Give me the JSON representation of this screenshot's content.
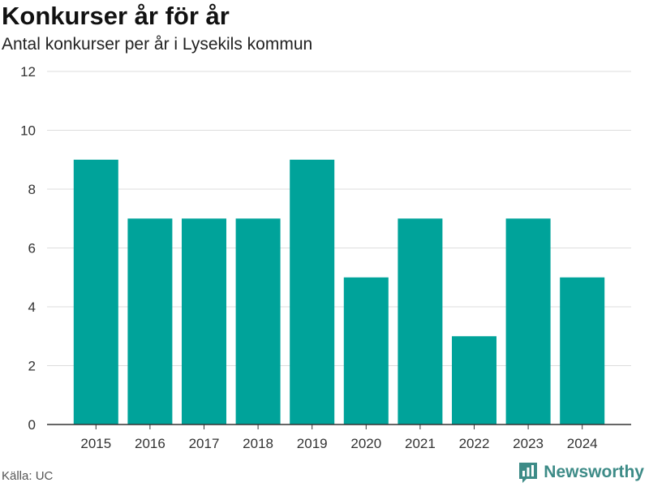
{
  "header": {
    "title": "Konkurser år för år",
    "subtitle": "Antal konkurser per år i Lysekils kommun"
  },
  "footer": {
    "source": "Källa: UC",
    "brand": "Newsworthy",
    "brand_color": "#3d8b87"
  },
  "colors": {
    "bar": "#00a39a",
    "grid": "#dddddd",
    "axis": "#333333"
  },
  "chart_data": {
    "type": "bar",
    "title": "Konkurser år för år",
    "subtitle": "Antal konkurser per år i Lysekils kommun",
    "xlabel": "",
    "ylabel": "",
    "categories": [
      "2015",
      "2016",
      "2017",
      "2018",
      "2019",
      "2020",
      "2021",
      "2022",
      "2023",
      "2024"
    ],
    "values": [
      9,
      7,
      7,
      7,
      9,
      5,
      7,
      3,
      7,
      5
    ],
    "ylim": [
      0,
      12
    ],
    "yticks": [
      0,
      2,
      4,
      6,
      8,
      10,
      12
    ],
    "grid": true,
    "legend": "none"
  }
}
